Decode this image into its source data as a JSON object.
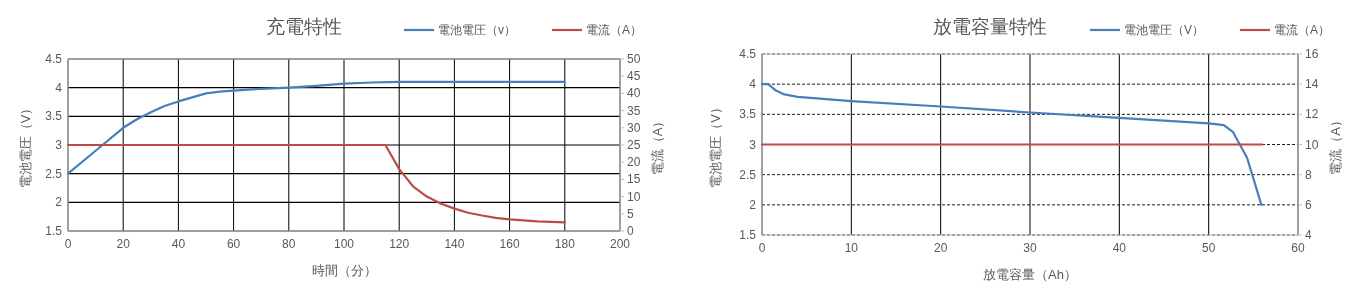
{
  "chart_data": [
    {
      "type": "line",
      "title": "充電特性",
      "xlabel": "時間（分）",
      "ylabel": "電池電圧（V）",
      "y2label": "電流（A）",
      "xlim": [
        0,
        200
      ],
      "xticks": [
        0,
        20,
        40,
        60,
        80,
        100,
        120,
        140,
        160,
        180,
        200
      ],
      "ylim": [
        1.5,
        4.5
      ],
      "yticks": [
        1.5,
        2,
        2.5,
        3,
        3.5,
        4,
        4.5
      ],
      "y2lim": [
        0,
        50
      ],
      "y2ticks": [
        0,
        5,
        10,
        15,
        20,
        25,
        30,
        35,
        40,
        45,
        50
      ],
      "grid": true,
      "legend": "top",
      "marker": "none",
      "line_style": "solid",
      "series": [
        {
          "name": "電池電圧（v）",
          "color": "#4a7ebb",
          "x": [
            0,
            10,
            20,
            25,
            30,
            35,
            40,
            50,
            55,
            60,
            70,
            80,
            90,
            100,
            110,
            120,
            180
          ],
          "values": [
            2.5,
            2.9,
            3.3,
            3.45,
            3.57,
            3.68,
            3.76,
            3.9,
            3.93,
            3.95,
            3.98,
            4.0,
            4.03,
            4.07,
            4.09,
            4.1,
            4.1
          ]
        },
        {
          "name": "電流（A）",
          "color": "#be4b48",
          "axis": "y2",
          "x": [
            0,
            115,
            120,
            125,
            130,
            135,
            140,
            145,
            150,
            155,
            160,
            170,
            180
          ],
          "values": [
            25,
            25,
            18,
            13,
            10,
            8,
            6.5,
            5.3,
            4.5,
            3.8,
            3.4,
            2.8,
            2.5
          ]
        }
      ]
    },
    {
      "type": "line",
      "title": "放電容量特性",
      "xlabel": "放電容量（Ah）",
      "ylabel": "電池電圧（V）",
      "y2label": "電流（A）",
      "xlim": [
        0,
        60
      ],
      "xticks": [
        0,
        10,
        20,
        30,
        40,
        50,
        60
      ],
      "ylim": [
        1.5,
        4.5
      ],
      "yticks": [
        1.5,
        2,
        2.5,
        3,
        3.5,
        4,
        4.5
      ],
      "y2lim": [
        4,
        16
      ],
      "y2ticks": [
        4,
        6,
        8,
        10,
        12,
        14,
        16
      ],
      "grid": true,
      "legend": "top",
      "marker": "none",
      "line_style": "solid",
      "series": [
        {
          "name": "電池電圧（V）",
          "color": "#4a7ebb",
          "x": [
            0,
            0.7,
            1.5,
            2.5,
            4,
            10,
            20,
            30,
            40,
            50,
            51.7,
            52.7,
            54.3,
            55.9
          ],
          "values": [
            4.0,
            4.0,
            3.9,
            3.83,
            3.79,
            3.72,
            3.63,
            3.53,
            3.44,
            3.35,
            3.32,
            3.21,
            2.78,
            2.0
          ]
        },
        {
          "name": "電流（A）",
          "color": "#be4b48",
          "axis": "y2",
          "x": [
            0,
            56
          ],
          "values": [
            10,
            10
          ]
        }
      ]
    }
  ]
}
